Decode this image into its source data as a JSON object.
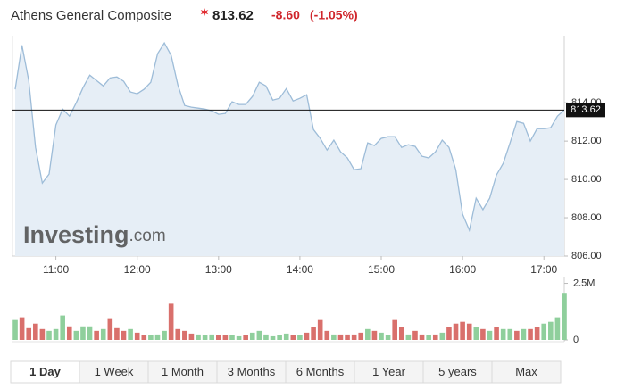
{
  "chart_data": {
    "type": "line",
    "title": "Athens General Composite",
    "price": 813.62,
    "change": "-8.60",
    "change_percent": "(-1.05%)",
    "watermark": {
      "brand": "Investing",
      "suffix": ".com"
    },
    "x": [
      "10:30",
      "10:35",
      "10:40",
      "10:45",
      "10:50",
      "10:55",
      "11:00",
      "11:05",
      "11:10",
      "11:15",
      "11:20",
      "11:25",
      "11:30",
      "11:35",
      "11:40",
      "11:45",
      "11:50",
      "11:55",
      "12:00",
      "12:05",
      "12:10",
      "12:15",
      "12:20",
      "12:25",
      "12:30",
      "12:35",
      "12:40",
      "12:45",
      "12:50",
      "12:55",
      "13:00",
      "13:05",
      "13:10",
      "13:15",
      "13:20",
      "13:25",
      "13:30",
      "13:35",
      "13:40",
      "13:45",
      "13:50",
      "13:55",
      "14:00",
      "14:05",
      "14:10",
      "14:15",
      "14:20",
      "14:25",
      "14:30",
      "14:35",
      "14:40",
      "14:45",
      "14:50",
      "14:55",
      "15:00",
      "15:05",
      "15:10",
      "15:15",
      "15:20",
      "15:25",
      "15:30",
      "15:35",
      "15:40",
      "15:45",
      "15:50",
      "15:55",
      "16:00",
      "16:05",
      "16:10",
      "16:15",
      "16:20",
      "16:25",
      "16:30",
      "16:35",
      "16:40",
      "16:45",
      "16:50",
      "16:55",
      "17:00",
      "17:05",
      "17:10",
      "17:15"
    ],
    "xlim": [
      "10:28",
      "17:15"
    ],
    "xticks": [
      "11:00",
      "12:00",
      "13:00",
      "14:00",
      "15:00",
      "16:00",
      "17:00"
    ],
    "series": [
      {
        "color": "#9dbcd8",
        "fill": "#e6eef6",
        "values": [
          814.7,
          817.0,
          815.16,
          811.67,
          809.81,
          810.28,
          812.84,
          813.67,
          813.3,
          814.0,
          814.79,
          815.44,
          815.16,
          814.88,
          815.3,
          815.35,
          815.12,
          814.56,
          814.47,
          814.7,
          815.07,
          816.56,
          817.12,
          816.47,
          814.93,
          813.86,
          813.77,
          813.72,
          813.67,
          813.58,
          813.4,
          813.44,
          814.05,
          813.91,
          813.91,
          814.33,
          815.07,
          814.88,
          814.14,
          814.23,
          814.74,
          814.09,
          814.23,
          814.42,
          812.6,
          812.14,
          811.53,
          812.05,
          811.44,
          811.12,
          810.51,
          810.56,
          811.91,
          811.77,
          812.14,
          812.23,
          812.23,
          811.67,
          811.81,
          811.72,
          811.21,
          811.12,
          811.44,
          812.05,
          811.67,
          810.51,
          808.19,
          807.35,
          809.02,
          808.42,
          809.02,
          810.23,
          810.84,
          811.91,
          813.02,
          812.93,
          812.0,
          812.65,
          812.65,
          812.7,
          813.3,
          813.62
        ]
      }
    ],
    "ylim": [
      806,
      817.5
    ],
    "yticks": [
      {
        "value": 806,
        "label": "806.00"
      },
      {
        "value": 808,
        "label": "808.00"
      },
      {
        "value": 810,
        "label": "810.00"
      },
      {
        "value": 812,
        "label": "812.00"
      },
      {
        "value": 814,
        "label": "814.00"
      }
    ],
    "volume": {
      "ylim": [
        0,
        2600000
      ],
      "yticks": [
        {
          "value": 2500000,
          "label": "2.5M"
        },
        0
      ],
      "series": [
        {
          "color": "#8fcf9c",
          "values": [
            880000,
            null,
            null,
            null,
            null,
            400000,
            480000,
            1080000,
            null,
            400000,
            600000,
            600000,
            null,
            480000,
            null,
            null,
            null,
            480000,
            null,
            null,
            200000,
            240000,
            400000,
            null,
            null,
            null,
            null,
            240000,
            200000,
            240000,
            null,
            null,
            200000,
            160000,
            null,
            320000,
            400000,
            240000,
            160000,
            200000,
            280000,
            null,
            200000,
            null,
            null,
            null,
            null,
            240000,
            null,
            null,
            null,
            null,
            480000,
            null,
            320000,
            200000,
            null,
            null,
            240000,
            null,
            null,
            200000,
            null,
            320000,
            null,
            null,
            null,
            null,
            560000,
            null,
            400000,
            null,
            480000,
            480000,
            null,
            480000,
            null,
            null,
            720000,
            800000,
            1000000,
            2080000
          ]
        },
        {
          "color": "#d9706c",
          "values": [
            null,
            1000000,
            520000,
            720000,
            480000,
            null,
            null,
            null,
            600000,
            null,
            null,
            null,
            400000,
            null,
            960000,
            520000,
            400000,
            null,
            320000,
            200000,
            null,
            null,
            null,
            1600000,
            480000,
            400000,
            280000,
            null,
            null,
            null,
            200000,
            200000,
            null,
            null,
            200000,
            null,
            null,
            null,
            null,
            null,
            null,
            200000,
            null,
            320000,
            560000,
            880000,
            400000,
            null,
            240000,
            240000,
            240000,
            320000,
            null,
            400000,
            null,
            null,
            880000,
            560000,
            null,
            400000,
            240000,
            null,
            240000,
            null,
            560000,
            720000,
            800000,
            720000,
            null,
            480000,
            null,
            560000,
            null,
            null,
            400000,
            null,
            480000,
            560000,
            null,
            null,
            null,
            null
          ]
        }
      ]
    },
    "tabs": [
      "1 Day",
      "1 Week",
      "1 Month",
      "3 Months",
      "6 Months",
      "1 Year",
      "5 years",
      "Max"
    ],
    "selected_tab": 0
  }
}
